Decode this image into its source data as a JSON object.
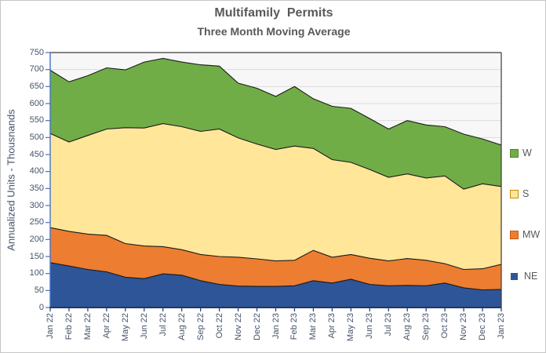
{
  "title": "Multifamily  Permits",
  "subtitle": "Three Month Moving Average",
  "y_axis": {
    "title": "Annualized Units - Thousnands",
    "min": 0,
    "max": 750,
    "step": 50,
    "tick_labels": [
      "750",
      "700",
      "650",
      "600",
      "550",
      "500",
      "450",
      "400",
      "350",
      "300",
      "250",
      "200",
      "150",
      "100",
      "50",
      "0"
    ]
  },
  "x_axis": {
    "labels": [
      "Jan 22",
      "Feb 22",
      "Mar 22",
      "Apr 22",
      "May 22",
      "Jun 22",
      "Jul 22",
      "Aug 22",
      "Sep 22",
      "Oct 22",
      "Nov 22",
      "Dec 22",
      "Jan 23",
      "Feb 23",
      "Mar 23",
      "Apr 23",
      "May 23",
      "Jun 23",
      "Jul 23",
      "Aug 23",
      "Sep 23",
      "Oct 23",
      "Nov 23",
      "Dec 23",
      "Jan 23"
    ]
  },
  "legend": [
    {
      "label": "W",
      "fill": "#70AD47",
      "border": "#548235",
      "small": false
    },
    {
      "label": "S",
      "fill": "#FFE699",
      "border": "#BF8F00",
      "small": false
    },
    {
      "label": "MW",
      "fill": "#ED7D31",
      "border": "#C55A11",
      "small": false
    },
    {
      "label": "NE",
      "fill": "#2E5597",
      "border": "#2E5597",
      "small": true
    }
  ],
  "colors": {
    "plot_background": "#F7F7F7",
    "gridline": "#DDDDDD",
    "area_outline": "#1a1a1a",
    "y_axis_line": "#4472C4",
    "x_axis_line": "#1F3864",
    "plot_border": "#3a3a3a",
    "title_text": "#595959",
    "tick_text": "#44546A"
  },
  "chart_data": {
    "type": "area",
    "stacked": true,
    "title": "Multifamily  Permits",
    "subtitle": "Three Month Moving Average",
    "ylabel": "Annualized Units - Thousnands",
    "ylim": [
      0,
      750
    ],
    "ytick_step": 50,
    "grid": true,
    "legend_position": "right",
    "categories": [
      "Jan 22",
      "Feb 22",
      "Mar 22",
      "Apr 22",
      "May 22",
      "Jun 22",
      "Jul 22",
      "Aug 22",
      "Sep 22",
      "Oct 22",
      "Nov 22",
      "Dec 22",
      "Jan 23",
      "Feb 23",
      "Mar 23",
      "Apr 23",
      "May 23",
      "Jun 23",
      "Jul 23",
      "Aug 23",
      "Sep 23",
      "Oct 23",
      "Nov 23",
      "Dec 23",
      "Jan 23"
    ],
    "series": [
      {
        "name": "NE",
        "color": "#2E5597",
        "values": [
          132,
          122,
          112,
          105,
          89,
          85,
          99,
          95,
          79,
          68,
          63,
          62,
          62,
          64,
          79,
          72,
          83,
          68,
          64,
          65,
          64,
          72,
          58,
          52,
          53
        ]
      },
      {
        "name": "MW",
        "color": "#ED7D31",
        "values": [
          103,
          102,
          104,
          107,
          99,
          96,
          80,
          75,
          77,
          82,
          85,
          81,
          75,
          75,
          89,
          76,
          73,
          77,
          73,
          79,
          75,
          57,
          54,
          62,
          74
        ]
      },
      {
        "name": "S",
        "color": "#FFE699",
        "values": [
          277,
          263,
          290,
          313,
          341,
          347,
          362,
          362,
          362,
          375,
          351,
          338,
          328,
          336,
          300,
          287,
          271,
          261,
          246,
          249,
          242,
          258,
          236,
          250,
          229
        ]
      },
      {
        "name": "W",
        "color": "#70AD47",
        "values": [
          186,
          177,
          176,
          180,
          170,
          194,
          192,
          190,
          196,
          185,
          161,
          164,
          156,
          175,
          146,
          157,
          159,
          150,
          142,
          157,
          156,
          145,
          162,
          132,
          122
        ]
      }
    ]
  }
}
